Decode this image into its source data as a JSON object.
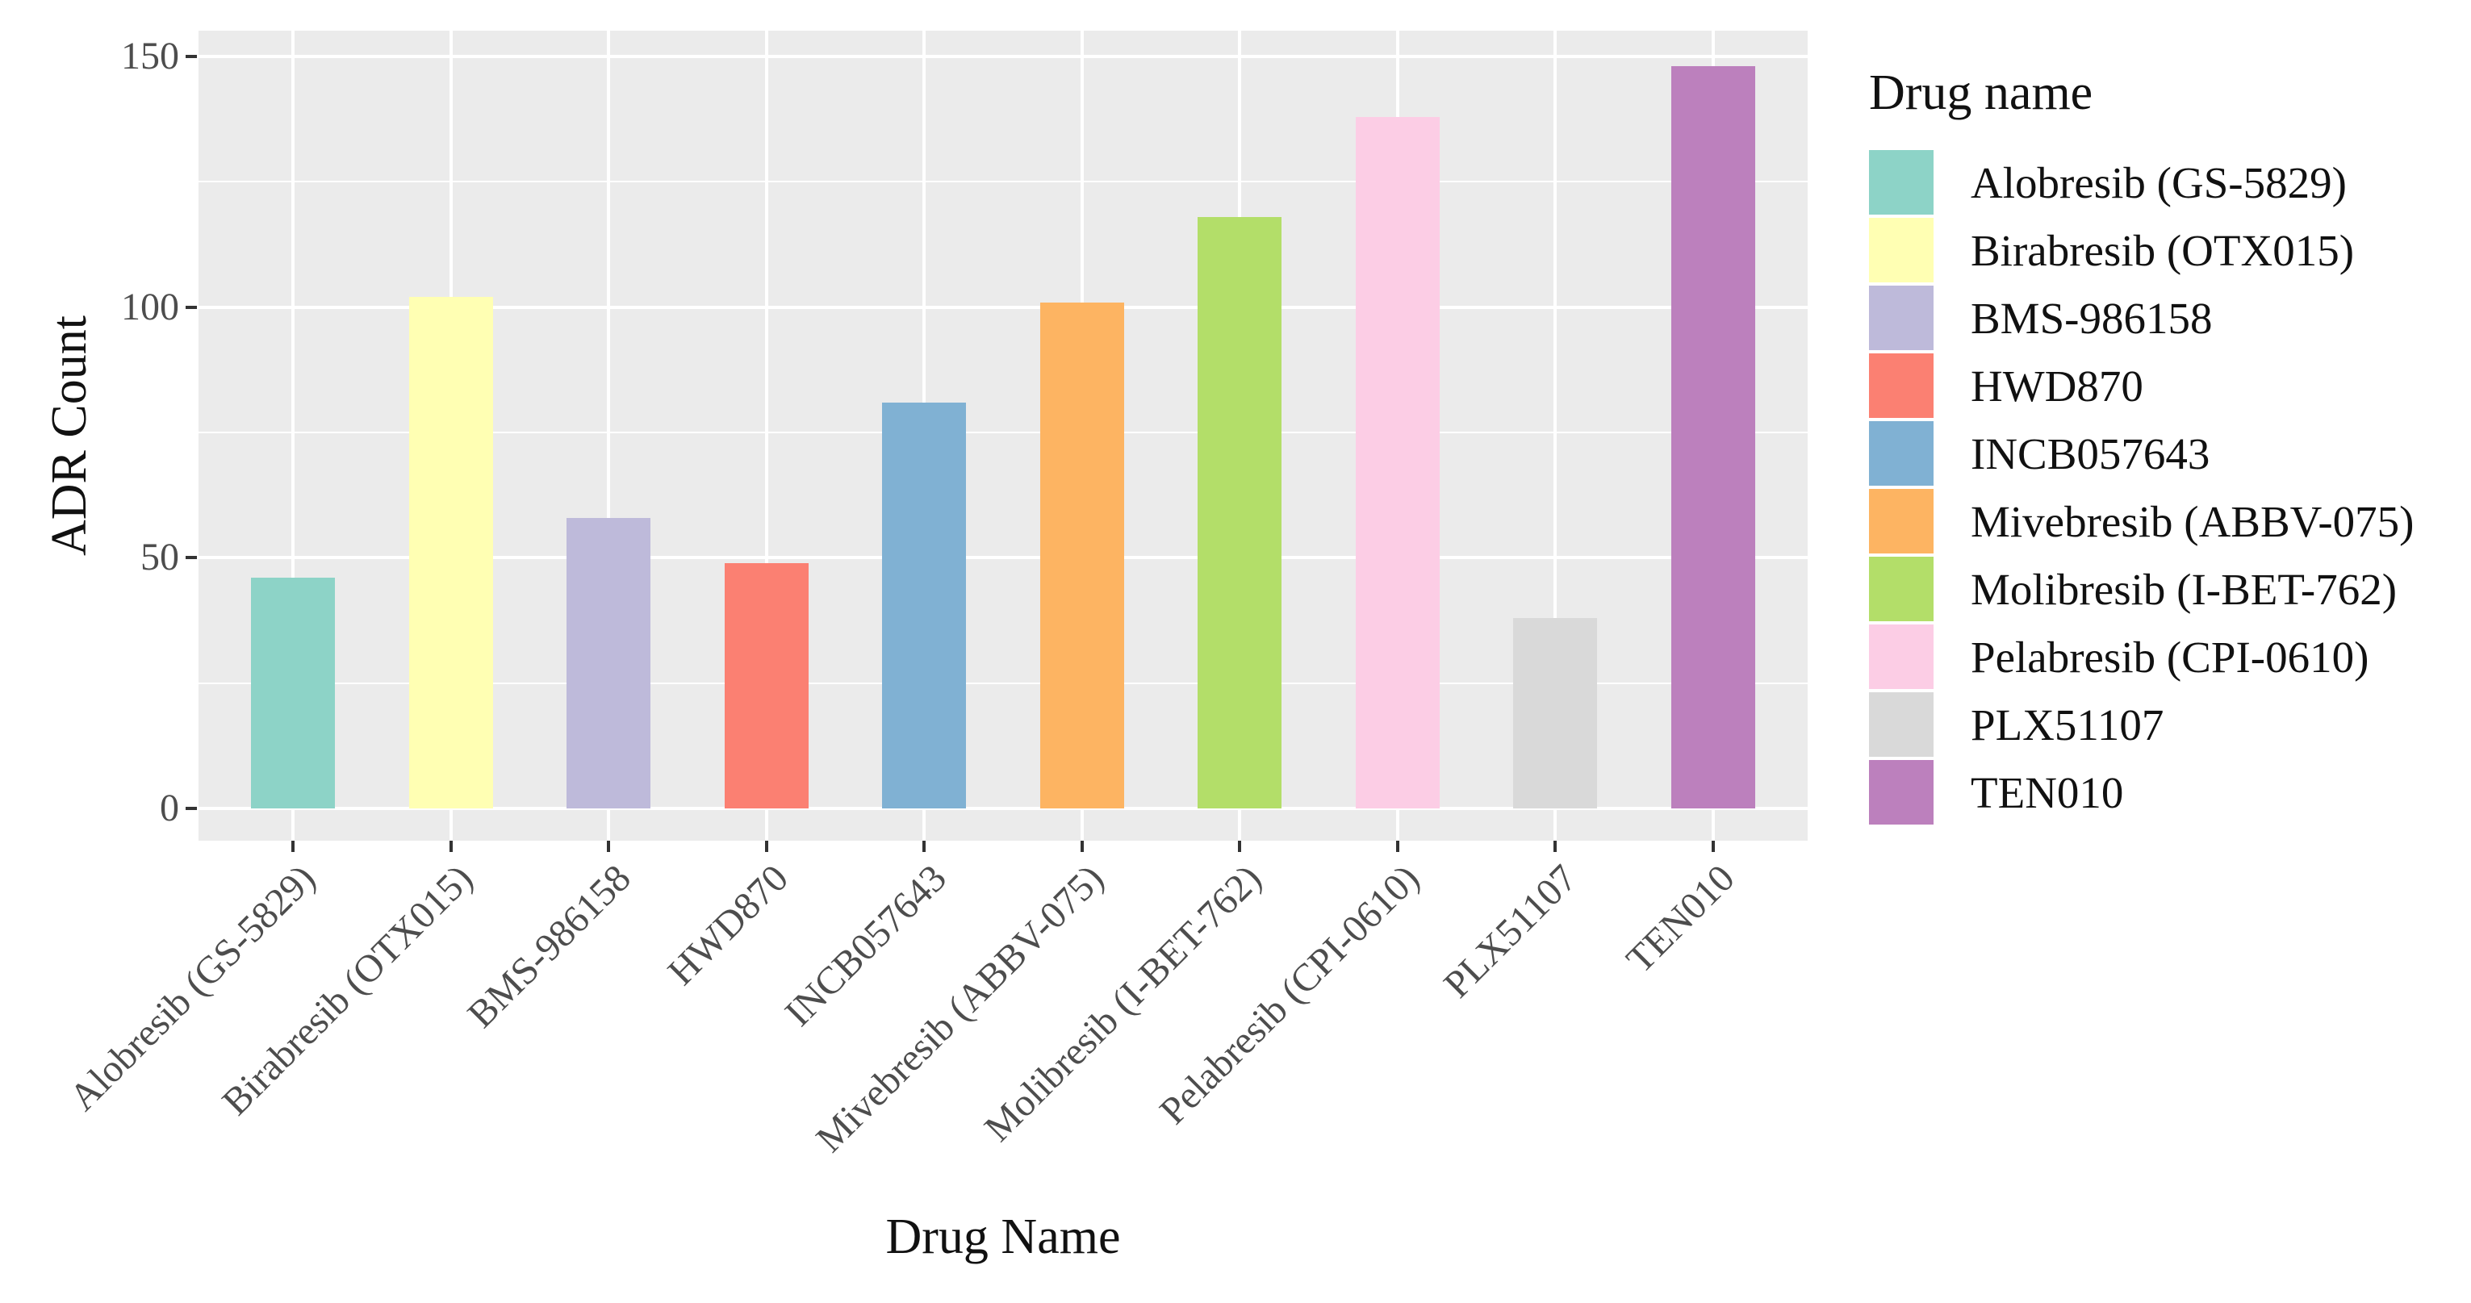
{
  "chart_data": {
    "type": "bar",
    "title": "",
    "xlabel": "Drug Name",
    "ylabel": "ADR Count",
    "categories": [
      "Alobresib (GS-5829)",
      "Birabresib (OTX015)",
      "BMS-986158",
      "HWD870",
      "INCB057643",
      "Mivebresib (ABBV-075)",
      "Molibresib (I-BET-762)",
      "Pelabresib (CPI-0610)",
      "PLX51107",
      "TEN010"
    ],
    "values": [
      46,
      102,
      58,
      49,
      81,
      101,
      118,
      138,
      38,
      148
    ],
    "bar_colors": [
      "#8DD3C7",
      "#FFFFB3",
      "#BEBADA",
      "#FB8072",
      "#80B1D3",
      "#FDB462",
      "#B3DE69",
      "#FCCDE5",
      "#D9D9D9",
      "#BC80BD"
    ],
    "ylim": [
      -6,
      155
    ],
    "yticks": [
      0,
      50,
      100,
      150
    ],
    "ytick_labels": [
      "0",
      "50",
      "100",
      "150"
    ],
    "yticks_minor": [
      25,
      75,
      125
    ],
    "grid": true,
    "panel_background": "#EBEBEB",
    "grid_color": "#FFFFFF",
    "legend_position": "right",
    "legend_title": "Drug name",
    "x_tick_rotation_deg": 45
  },
  "axes": {
    "x_title": "Drug Name",
    "y_title": "ADR Count",
    "tick_color": "#333333",
    "tick_label_color": "#4D4D4D"
  },
  "legend": {
    "title": "Drug name",
    "items": [
      {
        "label": "Alobresib (GS-5829)",
        "color": "#8DD3C7"
      },
      {
        "label": "Birabresib (OTX015)",
        "color": "#FFFFB3"
      },
      {
        "label": "BMS-986158",
        "color": "#BEBADA"
      },
      {
        "label": "HWD870",
        "color": "#FB8072"
      },
      {
        "label": "INCB057643",
        "color": "#80B1D3"
      },
      {
        "label": "Mivebresib (ABBV-075)",
        "color": "#FDB462"
      },
      {
        "label": "Molibresib (I-BET-762)",
        "color": "#B3DE69"
      },
      {
        "label": "Pelabresib (CPI-0610)",
        "color": "#FCCDE5"
      },
      {
        "label": "PLX51107",
        "color": "#D9D9D9"
      },
      {
        "label": "TEN010",
        "color": "#BC80BD"
      }
    ]
  }
}
